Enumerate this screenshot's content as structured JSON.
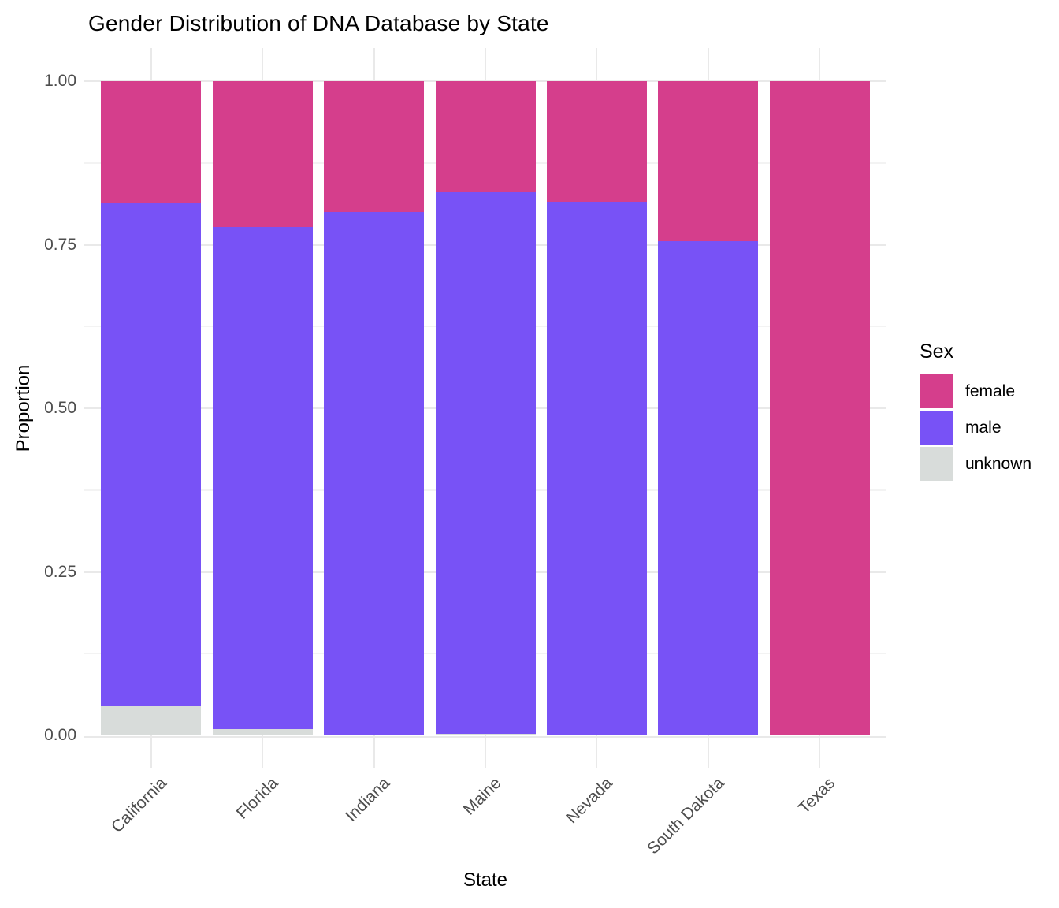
{
  "title": "Gender Distribution of DNA Database by State",
  "axes": {
    "x_title": "State",
    "y_title": "Proportion",
    "y_tick_labels": [
      "0.00",
      "0.25",
      "0.50",
      "0.75",
      "1.00"
    ],
    "y_tick_values": [
      0,
      0.25,
      0.5,
      0.75,
      1
    ],
    "y_minor_tick_values": [
      0.125,
      0.375,
      0.625,
      0.875
    ]
  },
  "legend": {
    "title": "Sex",
    "entries": [
      {
        "label": "female",
        "color": "#D53E8C"
      },
      {
        "label": "male",
        "color": "#7852F6"
      },
      {
        "label": "unknown",
        "color": "#D8DCDA"
      }
    ]
  },
  "chart_data": {
    "type": "bar",
    "stacked": true,
    "orientation": "vertical",
    "title": "Gender Distribution of DNA Database by State",
    "xlabel": "State",
    "ylabel": "Proportion",
    "ylim": [
      0,
      1
    ],
    "grid": true,
    "legend_position": "right",
    "categories": [
      "California",
      "Florida",
      "Indiana",
      "Maine",
      "Nevada",
      "South Dakota",
      "Texas"
    ],
    "stack_order_bottom_to_top": [
      "unknown",
      "male",
      "female"
    ],
    "series": [
      {
        "name": "female",
        "color": "#D53E8C",
        "values": [
          0.187,
          0.223,
          0.2,
          0.17,
          0.184,
          0.245,
          1.0
        ]
      },
      {
        "name": "male",
        "color": "#7852F6",
        "values": [
          0.768,
          0.767,
          0.8,
          0.828,
          0.816,
          0.755,
          0.0
        ]
      },
      {
        "name": "unknown",
        "color": "#D8DCDA",
        "values": [
          0.045,
          0.01,
          0.0,
          0.002,
          0.0,
          0.0,
          0.0
        ]
      }
    ]
  },
  "colors": {
    "female": "#D53E8C",
    "male": "#7852F6",
    "unknown": "#D8DCDA",
    "background": "#FFFFFF",
    "grid_major": "#E9E9E9",
    "grid_minor": "#F3F3F3",
    "tick_label": "#4D4D4D",
    "text": "#000000"
  }
}
